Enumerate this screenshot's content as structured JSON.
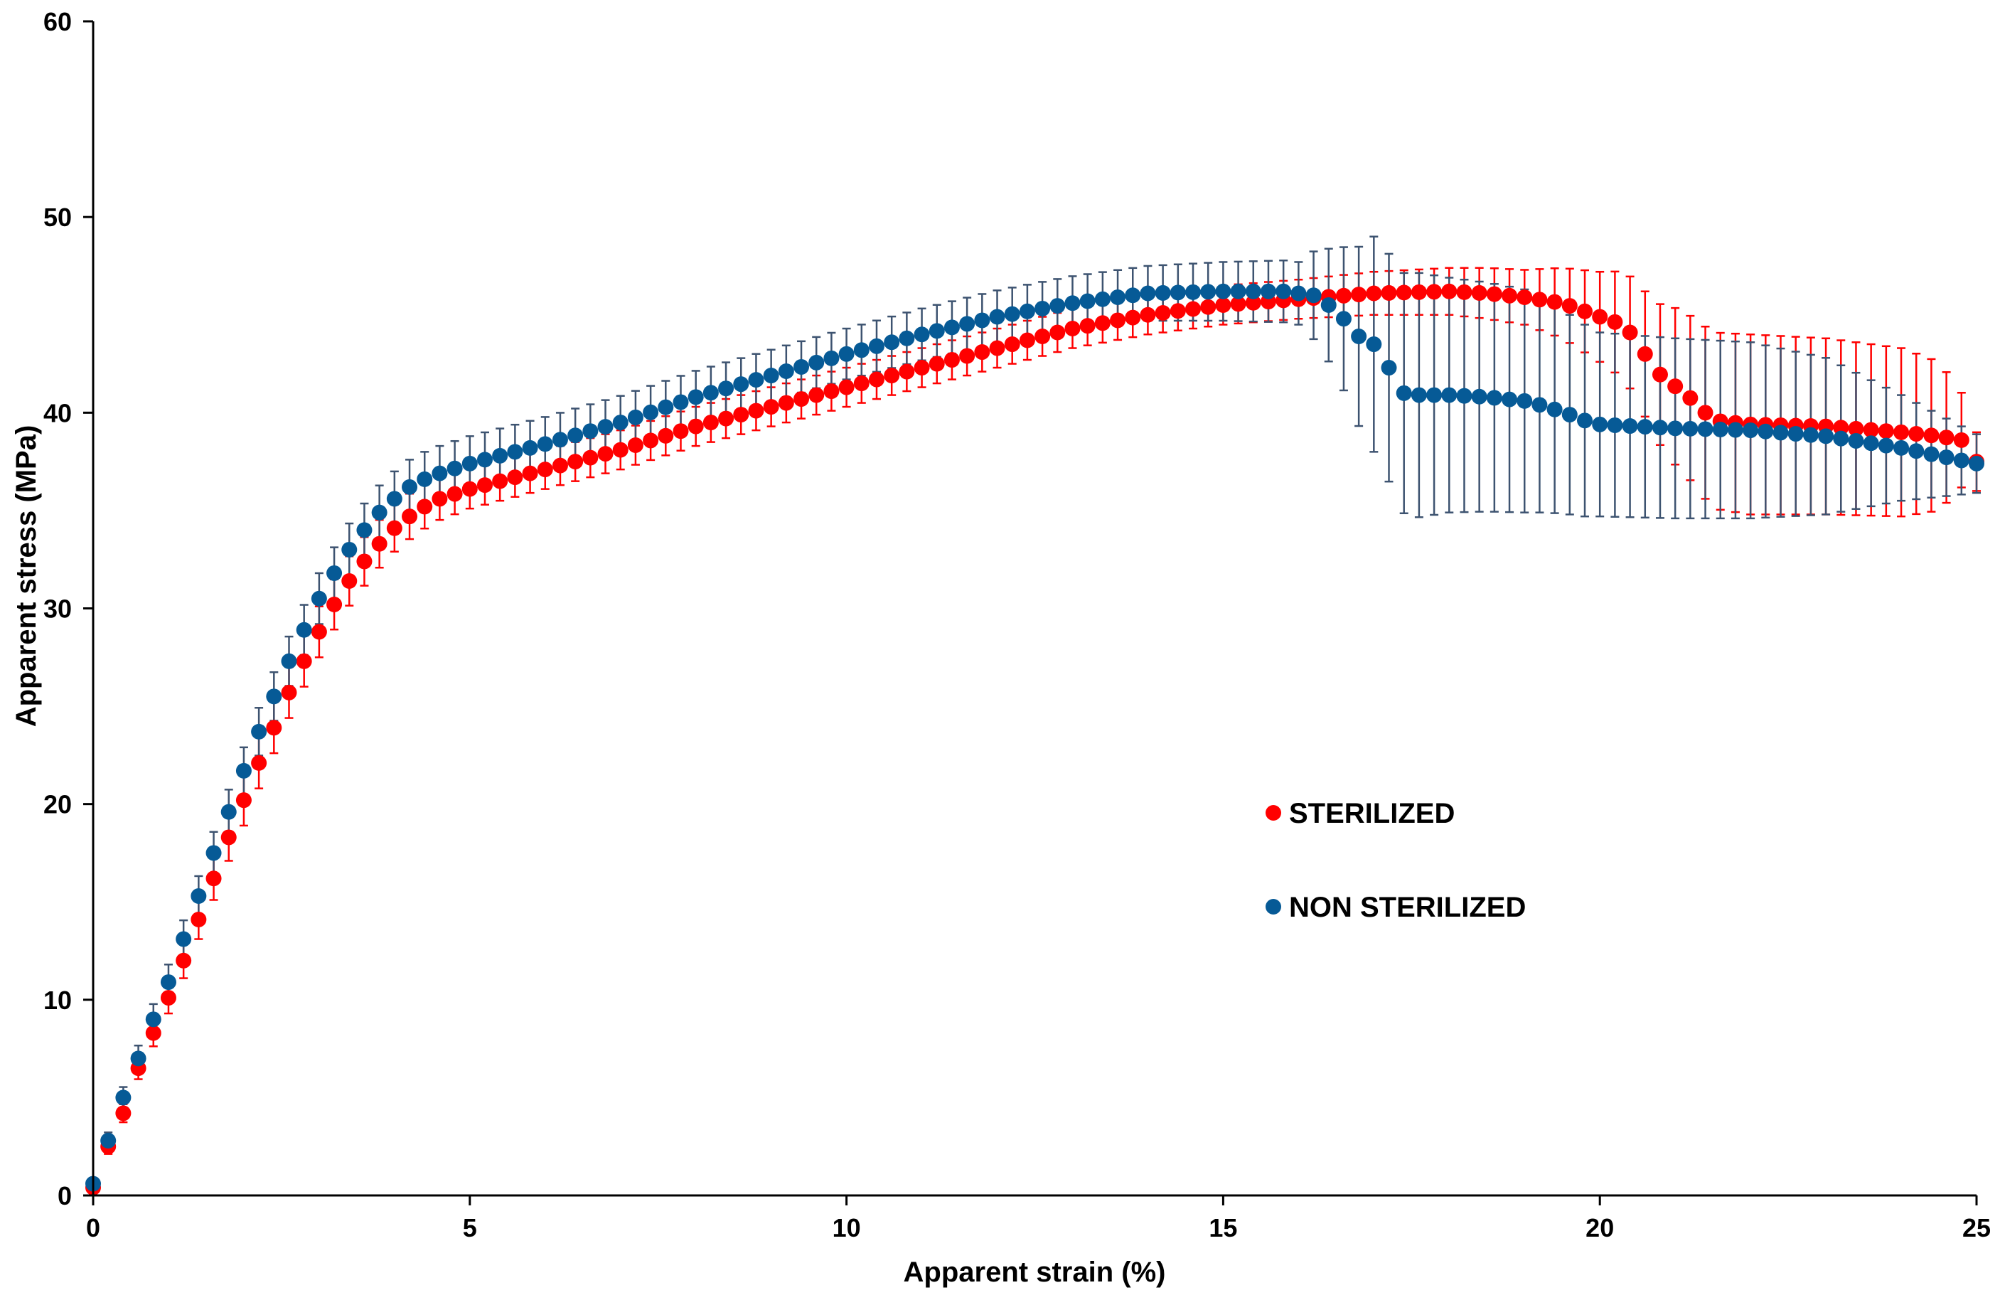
{
  "chart_data": {
    "type": "scatter",
    "title": "",
    "xlabel": "Apparent strain (%)",
    "ylabel": "Apparent stress (MPa)",
    "xlim": [
      0,
      25
    ],
    "ylim": [
      0,
      60
    ],
    "xticks": [
      "0",
      "5",
      "10",
      "15",
      "20",
      "25"
    ],
    "yticks": [
      "0",
      "10",
      "20",
      "30",
      "40",
      "50",
      "60"
    ],
    "grid": false,
    "legend_position": "center-right",
    "series": [
      {
        "name": "STERILIZED",
        "color": "#ff0000",
        "errorbar_style": "solid",
        "keypoints": [
          [
            0,
            0.4
          ],
          [
            0.2,
            2.5
          ],
          [
            0.4,
            4.2
          ],
          [
            0.6,
            6.5
          ],
          [
            0.8,
            8.3
          ],
          [
            1.0,
            10.1
          ],
          [
            1.2,
            12.0
          ],
          [
            1.4,
            14.1
          ],
          [
            1.6,
            16.2
          ],
          [
            1.8,
            18.3
          ],
          [
            2.0,
            20.2
          ],
          [
            2.2,
            22.1
          ],
          [
            2.4,
            23.9
          ],
          [
            2.6,
            25.7
          ],
          [
            2.8,
            27.3
          ],
          [
            3.0,
            28.8
          ],
          [
            3.2,
            30.2
          ],
          [
            3.4,
            31.4
          ],
          [
            3.6,
            32.4
          ],
          [
            3.8,
            33.3
          ],
          [
            4.0,
            34.1
          ],
          [
            4.2,
            34.7
          ],
          [
            4.4,
            35.2
          ],
          [
            4.6,
            35.6
          ],
          [
            5.0,
            36.1
          ],
          [
            6.0,
            37.1
          ],
          [
            7.0,
            38.1
          ],
          [
            8.0,
            39.3
          ],
          [
            9.0,
            40.3
          ],
          [
            10.0,
            41.3
          ],
          [
            11.0,
            42.3
          ],
          [
            12.0,
            43.3
          ],
          [
            13.0,
            44.3
          ],
          [
            14.0,
            45.0
          ],
          [
            15.0,
            45.5
          ],
          [
            16.0,
            45.8
          ],
          [
            17.0,
            46.1
          ],
          [
            18.0,
            46.2
          ],
          [
            18.5,
            46.1
          ],
          [
            19.0,
            45.9
          ],
          [
            19.5,
            45.6
          ],
          [
            20.0,
            44.9
          ],
          [
            20.3,
            44.5
          ],
          [
            20.5,
            43.7
          ],
          [
            20.7,
            42.3
          ],
          [
            20.9,
            41.6
          ],
          [
            21.1,
            41.1
          ],
          [
            21.3,
            40.4
          ],
          [
            21.5,
            39.6
          ],
          [
            22.0,
            39.4
          ],
          [
            23.0,
            39.3
          ],
          [
            24.0,
            39.0
          ],
          [
            24.5,
            38.8
          ],
          [
            24.8,
            38.6
          ],
          [
            25.0,
            37.5
          ]
        ],
        "error_keypoints": [
          [
            0,
            0.3
          ],
          [
            0.5,
            0.5
          ],
          [
            1,
            0.8
          ],
          [
            2,
            1.3
          ],
          [
            3,
            1.3
          ],
          [
            4,
            1.2
          ],
          [
            5,
            1.0
          ],
          [
            10,
            1.0
          ],
          [
            14,
            1.0
          ],
          [
            15,
            1.0
          ],
          [
            16,
            1.0
          ],
          [
            17,
            1.1
          ],
          [
            18,
            1.2
          ],
          [
            19,
            1.4
          ],
          [
            19.5,
            1.8
          ],
          [
            20,
            2.3
          ],
          [
            20.5,
            3.0
          ],
          [
            21,
            4.0
          ],
          [
            21.5,
            4.5
          ],
          [
            22,
            4.6
          ],
          [
            23,
            4.5
          ],
          [
            24,
            4.3
          ],
          [
            24.5,
            3.8
          ],
          [
            25,
            1.5
          ]
        ]
      },
      {
        "name": "NON STERILIZED",
        "color": "#065a96",
        "errorbar_style": "solid",
        "keypoints": [
          [
            0,
            0.6
          ],
          [
            0.2,
            2.8
          ],
          [
            0.4,
            5.0
          ],
          [
            0.6,
            7.0
          ],
          [
            0.8,
            9.0
          ],
          [
            1.0,
            10.9
          ],
          [
            1.2,
            13.1
          ],
          [
            1.4,
            15.3
          ],
          [
            1.6,
            17.5
          ],
          [
            1.8,
            19.6
          ],
          [
            2.0,
            21.7
          ],
          [
            2.2,
            23.7
          ],
          [
            2.4,
            25.5
          ],
          [
            2.6,
            27.3
          ],
          [
            2.8,
            28.9
          ],
          [
            3.0,
            30.5
          ],
          [
            3.2,
            31.8
          ],
          [
            3.4,
            33.0
          ],
          [
            3.6,
            34.0
          ],
          [
            3.8,
            34.9
          ],
          [
            4.0,
            35.6
          ],
          [
            4.2,
            36.2
          ],
          [
            4.4,
            36.6
          ],
          [
            4.6,
            36.9
          ],
          [
            5.0,
            37.4
          ],
          [
            6.0,
            38.4
          ],
          [
            7.0,
            39.5
          ],
          [
            8.0,
            40.8
          ],
          [
            9.0,
            41.9
          ],
          [
            10.0,
            43.0
          ],
          [
            11.0,
            44.0
          ],
          [
            12.0,
            44.9
          ],
          [
            13.0,
            45.6
          ],
          [
            14.0,
            46.1
          ],
          [
            15.0,
            46.2
          ],
          [
            15.8,
            46.2
          ],
          [
            16.2,
            46.0
          ],
          [
            16.4,
            45.5
          ],
          [
            16.6,
            44.8
          ],
          [
            16.8,
            43.9
          ],
          [
            17.0,
            43.5
          ],
          [
            17.2,
            42.3
          ],
          [
            17.4,
            41.0
          ],
          [
            17.6,
            40.9
          ],
          [
            18.0,
            40.9
          ],
          [
            18.5,
            40.8
          ],
          [
            19.0,
            40.6
          ],
          [
            19.3,
            40.3
          ],
          [
            19.6,
            39.9
          ],
          [
            19.8,
            39.6
          ],
          [
            20.0,
            39.4
          ],
          [
            20.5,
            39.3
          ],
          [
            21.0,
            39.2
          ],
          [
            22.0,
            39.1
          ],
          [
            23.0,
            38.8
          ],
          [
            24.0,
            38.2
          ],
          [
            25.0,
            37.4
          ]
        ],
        "error_keypoints": [
          [
            0,
            0.3
          ],
          [
            0.5,
            0.6
          ],
          [
            1,
            0.9
          ],
          [
            2,
            1.2
          ],
          [
            3,
            1.3
          ],
          [
            4,
            1.4
          ],
          [
            5,
            1.4
          ],
          [
            10,
            1.3
          ],
          [
            14,
            1.4
          ],
          [
            15,
            1.5
          ],
          [
            16,
            1.6
          ],
          [
            16.5,
            3.2
          ],
          [
            17,
            5.5
          ],
          [
            17.5,
            6.3
          ],
          [
            18,
            6.0
          ],
          [
            19,
            5.7
          ],
          [
            20,
            4.7
          ],
          [
            21,
            4.6
          ],
          [
            22,
            4.5
          ],
          [
            23,
            4.0
          ],
          [
            24,
            2.7
          ],
          [
            25,
            1.5
          ]
        ]
      }
    ]
  }
}
